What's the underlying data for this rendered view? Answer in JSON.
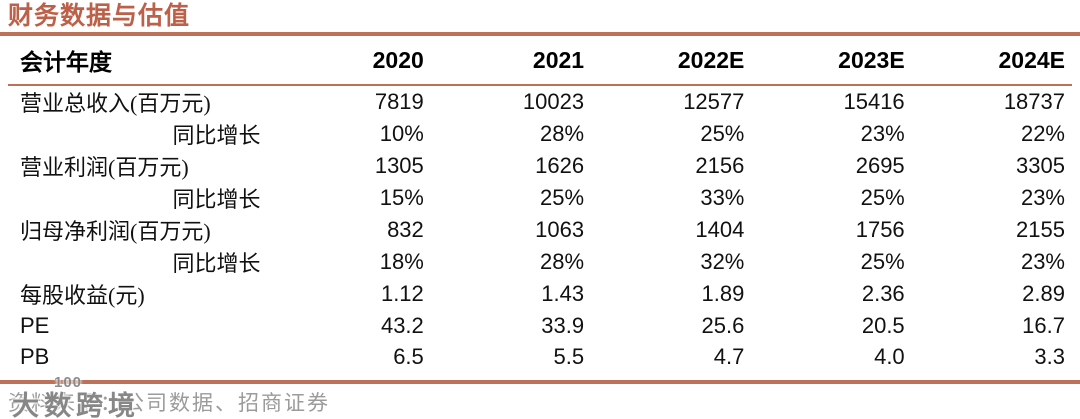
{
  "title": "财务数据与估值",
  "table": {
    "header": [
      "会计年度",
      "2020",
      "2021",
      "2022E",
      "2023E",
      "2024E"
    ],
    "rows": [
      {
        "label": "营业总收入(百万元)",
        "indent": false,
        "values": [
          "7819",
          "10023",
          "12577",
          "15416",
          "18737"
        ]
      },
      {
        "label": "同比增长",
        "indent": true,
        "values": [
          "10%",
          "28%",
          "25%",
          "23%",
          "22%"
        ]
      },
      {
        "label": "营业利润(百万元)",
        "indent": false,
        "values": [
          "1305",
          "1626",
          "2156",
          "2695",
          "3305"
        ]
      },
      {
        "label": "同比增长",
        "indent": true,
        "values": [
          "15%",
          "25%",
          "33%",
          "25%",
          "23%"
        ]
      },
      {
        "label": "归母净利润(百万元)",
        "indent": false,
        "values": [
          "832",
          "1063",
          "1404",
          "1756",
          "2155"
        ]
      },
      {
        "label": "同比增长",
        "indent": true,
        "values": [
          "18%",
          "28%",
          "32%",
          "25%",
          "23%"
        ]
      },
      {
        "label": "每股收益(元)",
        "indent": false,
        "values": [
          "1.12",
          "1.43",
          "1.89",
          "2.36",
          "2.89"
        ]
      },
      {
        "label": "PE",
        "indent": false,
        "values": [
          "43.2",
          "33.9",
          "25.6",
          "20.5",
          "16.7"
        ]
      },
      {
        "label": "PB",
        "indent": false,
        "values": [
          "6.5",
          "5.5",
          "4.7",
          "4.0",
          "3.3"
        ]
      }
    ]
  },
  "footer": {
    "source": "资料来源：公司数据、招商证券"
  },
  "watermark": {
    "logo": "100",
    "text": "大数跨境"
  },
  "colors": {
    "accent": "#bd6049",
    "rule": "#bd7158",
    "muted": "#9b9b9b"
  }
}
